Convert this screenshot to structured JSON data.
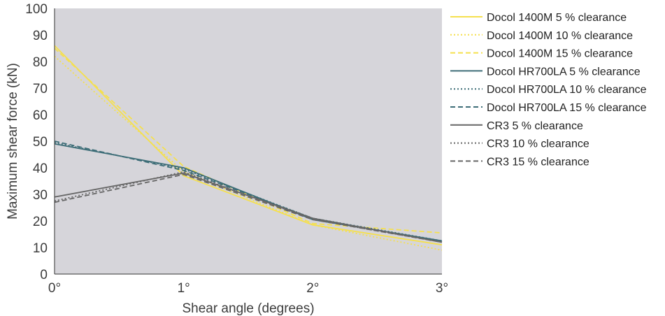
{
  "chart_data": {
    "type": "line",
    "title": "",
    "xlabel": "Shear angle (degrees)",
    "ylabel": "Maximum shear force (kN)",
    "x": [
      0,
      1,
      2,
      3
    ],
    "x_tick_labels": [
      "0°",
      "1°",
      "2°",
      "3°"
    ],
    "y_ticks": [
      0,
      10,
      20,
      30,
      40,
      50,
      60,
      70,
      80,
      90,
      100
    ],
    "xlim": [
      0,
      3
    ],
    "ylim": [
      0,
      100
    ],
    "grid": false,
    "plot_background": "#d6d5da",
    "legend_position": "right",
    "series": [
      {
        "name": "Docol 1400M 5 % clearance",
        "values": [
          86,
          37,
          18.5,
          11
        ],
        "color": "#f5e04e",
        "dash": "solid"
      },
      {
        "name": "Docol 1400M 10 % clearance",
        "values": [
          82,
          38.5,
          18.5,
          9
        ],
        "color": "#f5e04e",
        "dash": "dotted"
      },
      {
        "name": "Docol 1400M 15 % clearance",
        "values": [
          85,
          40.5,
          19,
          15.5
        ],
        "color": "#f5e04e",
        "dash": "dashed"
      },
      {
        "name": "Docol HR700LA 5 % clearance",
        "values": [
          49,
          40,
          20.5,
          12.5
        ],
        "color": "#3d6d77",
        "dash": "solid"
      },
      {
        "name": "Docol HR700LA 10 % clearance",
        "values": [
          49.5,
          39.5,
          21,
          12.5
        ],
        "color": "#3d6d77",
        "dash": "dotted"
      },
      {
        "name": "Docol HR700LA 15 % clearance",
        "values": [
          50,
          39,
          21,
          12
        ],
        "color": "#3d6d77",
        "dash": "dashed"
      },
      {
        "name": "CR3 5 % clearance",
        "values": [
          29,
          38,
          21,
          12
        ],
        "color": "#666666",
        "dash": "solid"
      },
      {
        "name": "CR3 10 % clearance",
        "values": [
          27.5,
          38.5,
          20.5,
          12
        ],
        "color": "#666666",
        "dash": "dotted"
      },
      {
        "name": "CR3 15 % clearance",
        "values": [
          27,
          37.5,
          20.5,
          12
        ],
        "color": "#666666",
        "dash": "dashed"
      }
    ]
  }
}
